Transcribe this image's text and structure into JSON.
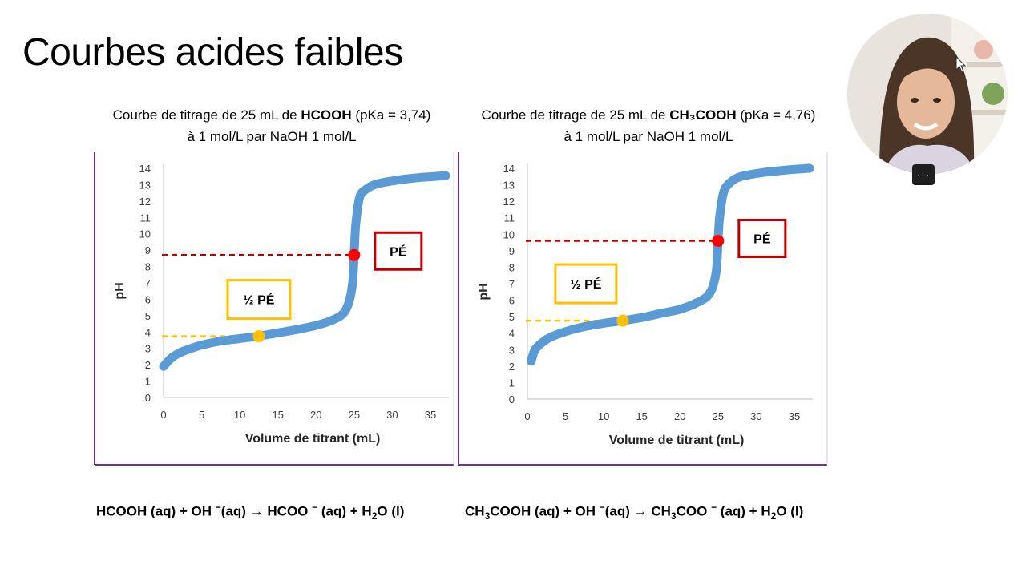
{
  "slide": {
    "title": "Courbes acides faibles"
  },
  "charts": {
    "left": {
      "caption_line1_pre": "Courbe de titrage de 25 mL de ",
      "caption_line1_bold": "HCOOH",
      "caption_line1_post": " (pKa = 3,74)",
      "caption_line2": "à 1 mol/L par NaOH 1 mol/L",
      "equation": {
        "p1": "HCOOH (aq) + OH ",
        "p2": "(aq) → HCOO ",
        "p3": " (aq) + H",
        "p4": "O (l)",
        "sup": "−",
        "sub": "2"
      }
    },
    "right": {
      "caption_line1_pre": "Courbe de titrage de 25 mL de ",
      "caption_line1_bold": "CH₃COOH",
      "caption_line1_post": " (pKa = 4,76)",
      "caption_line2": "à 1 mol/L par NaOH 1 mol/L",
      "equation": {
        "p0": "CH",
        "sub0": "3",
        "p1": "COOH (aq) + OH ",
        "p2": "(aq) → CH",
        "sub1": "3",
        "p3": "COO ",
        "p4": " (aq) + H",
        "p5": "O (l)",
        "sup": "−",
        "sub2": "2"
      }
    }
  },
  "chart_data": [
    {
      "type": "line",
      "xlabel": "Volume de titrant (mL)",
      "ylabel": "pH",
      "xlim": [
        0,
        37
      ],
      "ylim": [
        0,
        14
      ],
      "xticks": [
        0,
        5,
        10,
        15,
        20,
        25,
        30,
        35
      ],
      "yticks": [
        0,
        1,
        2,
        3,
        4,
        5,
        6,
        7,
        8,
        9,
        10,
        11,
        12,
        13,
        14
      ],
      "grid": false,
      "series": [
        {
          "color": "#5b9bd5",
          "x": [
            0,
            1,
            2,
            3,
            5,
            7.5,
            10,
            12.5,
            15,
            17.5,
            20,
            22,
            23.5,
            24.3,
            24.8,
            25,
            25.2,
            25.7,
            26.5,
            28,
            31,
            34,
            37
          ],
          "y": [
            1.9,
            2.4,
            2.7,
            2.9,
            3.2,
            3.45,
            3.6,
            3.75,
            3.95,
            4.15,
            4.4,
            4.7,
            5.1,
            5.8,
            7.0,
            8.7,
            10.5,
            12.2,
            12.7,
            13.05,
            13.3,
            13.45,
            13.55
          ]
        }
      ],
      "points": [
        {
          "label": "½ PÉ",
          "x": 12.5,
          "y": 3.74,
          "color": "#ffc000"
        },
        {
          "label": "PÉ",
          "x": 25,
          "y": 8.7,
          "color": "#ff0000"
        }
      ],
      "annotations": {
        "half_eq_label": "½ PÉ",
        "eq_label": "PÉ"
      }
    },
    {
      "type": "line",
      "xlabel": "Volume de titrant (mL)",
      "ylabel": "pH",
      "xlim": [
        0,
        37
      ],
      "ylim": [
        0,
        14
      ],
      "xticks": [
        0,
        5,
        10,
        15,
        20,
        25,
        30,
        35
      ],
      "yticks": [
        0,
        1,
        2,
        3,
        4,
        5,
        6,
        7,
        8,
        9,
        10,
        11,
        12,
        13,
        14
      ],
      "grid": false,
      "series": [
        {
          "color": "#5b9bd5",
          "x": [
            0.5,
            1,
            2,
            3,
            5,
            7.5,
            10,
            12.5,
            15,
            17.5,
            20,
            22,
            23.5,
            24.3,
            24.8,
            25,
            25.2,
            25.7,
            26.5,
            28,
            31,
            34,
            37
          ],
          "y": [
            2.3,
            3.0,
            3.45,
            3.75,
            4.1,
            4.4,
            4.6,
            4.76,
            4.95,
            5.2,
            5.45,
            5.8,
            6.2,
            6.8,
            7.9,
            9.6,
            11.0,
            12.5,
            13.1,
            13.5,
            13.75,
            13.9,
            14.0
          ]
        }
      ],
      "points": [
        {
          "label": "½ PÉ",
          "x": 12.5,
          "y": 4.76,
          "color": "#ffc000"
        },
        {
          "label": "PÉ",
          "x": 25,
          "y": 9.6,
          "color": "#ff0000"
        }
      ],
      "annotations": {
        "half_eq_label": "½ PÉ",
        "eq_label": "PÉ"
      }
    }
  ],
  "webcam": {
    "menu_label": "···"
  }
}
